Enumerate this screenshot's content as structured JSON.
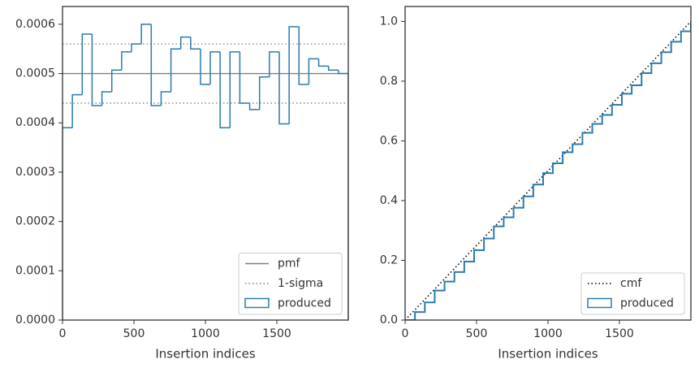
{
  "chart_data": [
    {
      "type": "histogram",
      "xlabel": "Insertion indices",
      "xlim": [
        0,
        2000
      ],
      "xticks": [
        0,
        500,
        1000,
        1500
      ],
      "ylim": [
        0,
        0.000636
      ],
      "yticks": [
        {
          "value": 0,
          "label": "0.0000"
        },
        {
          "value": 0.0001,
          "label": "0.0001"
        },
        {
          "value": 0.0002,
          "label": "0.0002"
        },
        {
          "value": 0.0003,
          "label": "0.0003"
        },
        {
          "value": 0.0004,
          "label": "0.0004"
        },
        {
          "value": 0.0005,
          "label": "0.0005"
        },
        {
          "value": 0.0006,
          "label": "0.0006"
        }
      ],
      "legend": "lower right",
      "reference_lines": [
        {
          "name": "pmf",
          "values": [
            0.0005
          ],
          "color": "#808080",
          "style": "solid"
        },
        {
          "name": "1-sigma",
          "values": [
            0.00056,
            0.00044
          ],
          "color": "#808080",
          "style": "dotted"
        }
      ],
      "series": [
        {
          "name": "produced",
          "color": "#2b7bb0",
          "bins": [
            0,
            69,
            138,
            207,
            276,
            345,
            414,
            483,
            552,
            621,
            690,
            759,
            828,
            897,
            966,
            1034,
            1103,
            1172,
            1241,
            1310,
            1379,
            1448,
            1517,
            1586,
            1655,
            1724,
            1793,
            1862,
            1931,
            2000
          ],
          "values": [
            0.00039,
            0.000457,
            0.00058,
            0.000435,
            0.000463,
            0.000507,
            0.000544,
            0.00056,
            0.0006,
            0.000435,
            0.000463,
            0.00055,
            0.000574,
            0.00055,
            0.000478,
            0.000544,
            0.00039,
            0.000544,
            0.00044,
            0.000427,
            0.000493,
            0.000544,
            0.000398,
            0.000595,
            0.000478,
            0.00053,
            0.000515,
            0.000507,
            0.0005
          ]
        }
      ]
    },
    {
      "type": "line",
      "xlabel": "Insertion indices",
      "xlim": [
        0,
        2000
      ],
      "xticks": [
        0,
        500,
        1000,
        1500
      ],
      "ylim": [
        0,
        1.05
      ],
      "yticks": [
        {
          "value": 0,
          "label": "0.0"
        },
        0.2,
        0.4,
        0.6,
        0.8,
        {
          "value": 1,
          "label": "1.0"
        }
      ],
      "legend": "lower right",
      "series": [
        {
          "name": "cmf",
          "color": "#000000",
          "style": "dotted",
          "x": [
            0,
            2000
          ],
          "values": [
            0,
            1
          ]
        },
        {
          "name": "produced",
          "color": "#2b7bb0",
          "style": "step",
          "x": [
            0,
            69,
            138,
            207,
            276,
            345,
            414,
            483,
            552,
            621,
            690,
            759,
            828,
            897,
            966,
            1034,
            1103,
            1172,
            1241,
            1310,
            1379,
            1448,
            1517,
            1586,
            1655,
            1724,
            1793,
            1862,
            1931,
            2000
          ],
          "values": [
            0,
            0.027,
            0.059,
            0.099,
            0.129,
            0.161,
            0.196,
            0.234,
            0.273,
            0.314,
            0.344,
            0.376,
            0.414,
            0.454,
            0.492,
            0.525,
            0.562,
            0.589,
            0.627,
            0.657,
            0.687,
            0.721,
            0.758,
            0.786,
            0.827,
            0.86,
            0.897,
            0.932,
            0.967,
            1
          ]
        }
      ]
    }
  ]
}
